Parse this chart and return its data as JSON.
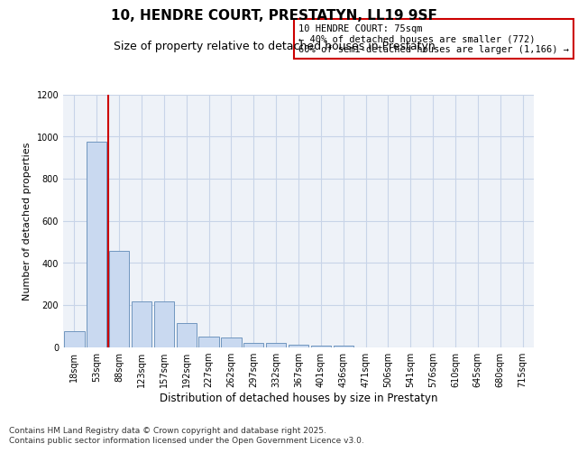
{
  "title": "10, HENDRE COURT, PRESTATYN, LL19 9SF",
  "subtitle": "Size of property relative to detached houses in Prestatyn",
  "xlabel": "Distribution of detached houses by size in Prestatyn",
  "ylabel": "Number of detached properties",
  "categories": [
    "18sqm",
    "53sqm",
    "88sqm",
    "123sqm",
    "157sqm",
    "192sqm",
    "227sqm",
    "262sqm",
    "297sqm",
    "332sqm",
    "367sqm",
    "401sqm",
    "436sqm",
    "471sqm",
    "506sqm",
    "541sqm",
    "576sqm",
    "610sqm",
    "645sqm",
    "680sqm",
    "715sqm"
  ],
  "values": [
    75,
    975,
    455,
    215,
    215,
    115,
    50,
    45,
    20,
    20,
    10,
    8,
    5,
    0,
    0,
    0,
    0,
    0,
    0,
    0,
    0
  ],
  "bar_color": "#c9d9f0",
  "bar_edge_color": "#7096bf",
  "vline_x": 1.5,
  "vline_color": "#cc0000",
  "annotation_text": "10 HENDRE COURT: 75sqm\n← 40% of detached houses are smaller (772)\n60% of semi-detached houses are larger (1,166) →",
  "annotation_box_color": "#ffffff",
  "annotation_box_edge": "#cc0000",
  "ylim": [
    0,
    1200
  ],
  "yticks": [
    0,
    200,
    400,
    600,
    800,
    1000,
    1200
  ],
  "grid_color": "#c8d4e8",
  "bg_color": "#eef2f8",
  "footer": "Contains HM Land Registry data © Crown copyright and database right 2025.\nContains public sector information licensed under the Open Government Licence v3.0.",
  "title_fontsize": 11,
  "subtitle_fontsize": 9,
  "xlabel_fontsize": 8.5,
  "ylabel_fontsize": 8,
  "tick_fontsize": 7,
  "footer_fontsize": 6.5
}
